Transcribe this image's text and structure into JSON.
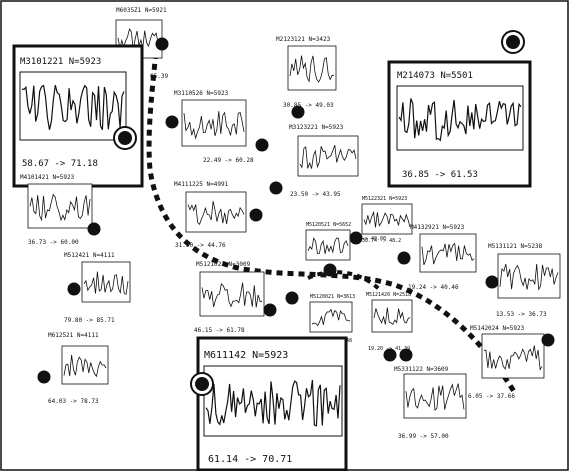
{
  "colors": {
    "ink": "#111111",
    "background": "#ffffff"
  },
  "panels": [
    {
      "id": "m6035z1",
      "title": "M6035Z1 N=5921",
      "range": "65.39",
      "emphasis": "small"
    },
    {
      "id": "m3101221",
      "title": "M3101221 N=5923",
      "range": "58.67 -> 71.18",
      "emphasis": "large"
    },
    {
      "id": "m2123121",
      "title": "M2123121 N=3423",
      "range": "30.85 -> 49.03",
      "emphasis": "small"
    },
    {
      "id": "m214073",
      "title": "M214073 N=5501",
      "range": "36.85 -> 61.53",
      "emphasis": "large"
    },
    {
      "id": "m3110526",
      "title": "M3110526 N=5923",
      "range": "22.49 -> 60.28",
      "emphasis": "small"
    },
    {
      "id": "m3123221",
      "title": "M3123221 N=5923",
      "range": "23.50 -> 43.95",
      "emphasis": "small"
    },
    {
      "id": "m4101421",
      "title": "M4101421 N=5923",
      "range": "36.73 -> 60.00",
      "emphasis": "small"
    },
    {
      "id": "m4111225",
      "title": "M4111225 N=4991",
      "range": "31.90 -> 44.76",
      "emphasis": "small"
    },
    {
      "id": "m5120521",
      "title": "M5120521 N=5652",
      "range": "",
      "emphasis": "tiny"
    },
    {
      "id": "m5122321",
      "title": "M5122321 N=5923",
      "range": "30.74 -> 48.2",
      "emphasis": "tiny"
    },
    {
      "id": "m4132921",
      "title": "M4132921 N=5923",
      "range": "19.24 -> 40.46",
      "emphasis": "small"
    },
    {
      "id": "m5131121",
      "title": "M5131121 N=5238",
      "range": "13.53 -> 36.73",
      "emphasis": "small"
    },
    {
      "id": "m512421",
      "title": "M512421 N=4111",
      "range": "79.80 -> 85.71",
      "emphasis": "small"
    },
    {
      "id": "m5121022",
      "title": "M5121022 N=3009",
      "range": "46.15 -> 61.78",
      "emphasis": "small"
    },
    {
      "id": "m5120021",
      "title": "M5120021 N=3613",
      "range": "",
      "emphasis": "tiny"
    },
    {
      "id": "m5121420",
      "title": "M5121420 N=2518",
      "range": "19.20 -> 41.39",
      "emphasis": "tiny"
    },
    {
      "id": "m5142024",
      "title": "M5142024 N=5923",
      "range": "6.05 -> 37.66",
      "emphasis": "small"
    },
    {
      "id": "m612521",
      "title": "M612521 N=4111",
      "range": "64.03 -> 78.73",
      "emphasis": "small"
    },
    {
      "id": "m611142",
      "title": "M611142 N=5923",
      "range": "61.14 -> 70.71",
      "emphasis": "large"
    },
    {
      "id": "m5331122",
      "title": "M5331122 N=3609",
      "range": "36.99 -> 57.00",
      "emphasis": "small"
    }
  ],
  "stray_labels": [
    "-> 40.00",
    "48"
  ]
}
